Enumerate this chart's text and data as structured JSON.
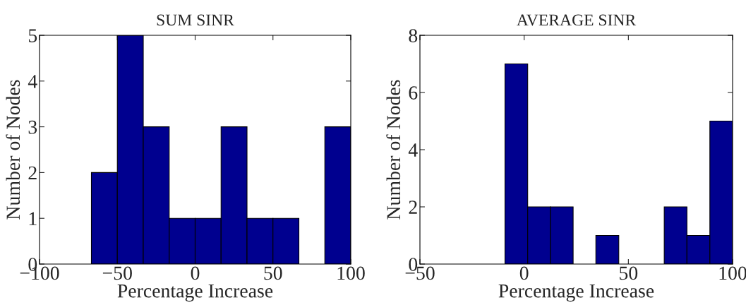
{
  "chart_data": [
    {
      "type": "histogram",
      "title": "SUM SINR",
      "xlabel": "Percentage Increase",
      "ylabel": "Number of Nodes",
      "color": "#00008f",
      "bins": [
        -66.67,
        -50,
        -33.33,
        -16.67,
        0,
        16.67,
        33.33,
        50,
        66.67,
        83.33,
        100
      ],
      "values": [
        2,
        5,
        3,
        1,
        1,
        3,
        1,
        1,
        0,
        3
      ],
      "xlim": [
        -100,
        100
      ],
      "xticks": [
        -100,
        -50,
        0,
        50,
        100
      ],
      "ylim": [
        0,
        5
      ],
      "yticks": [
        0,
        1,
        2,
        3,
        4,
        5
      ],
      "grid": false
    },
    {
      "type": "histogram",
      "title": "AVERAGE SINR",
      "xlabel": "Percentage Increase",
      "ylabel": "Number of Nodes",
      "color": "#00008f",
      "bins": [
        -9.2,
        1.7,
        12.6,
        23.5,
        34.4,
        45.4,
        56.3,
        67.2,
        78.1,
        89.1,
        100
      ],
      "values": [
        7,
        2,
        2,
        0,
        1,
        0,
        0,
        2,
        1,
        5
      ],
      "xlim": [
        -50,
        100
      ],
      "xticks": [
        -50,
        0,
        50,
        100
      ],
      "ylim": [
        0,
        8
      ],
      "yticks": [
        0,
        2,
        4,
        6,
        8
      ],
      "grid": false
    }
  ]
}
